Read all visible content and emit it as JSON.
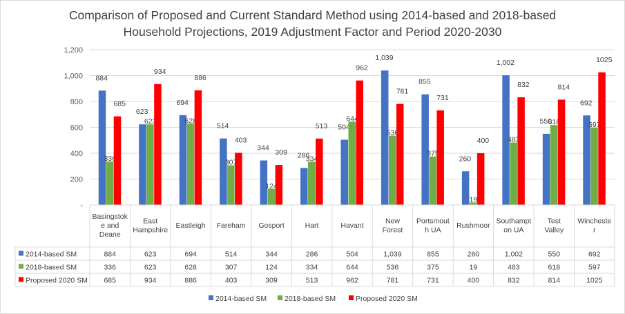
{
  "chart_data": {
    "type": "bar",
    "title_lines": [
      "Comparison of Proposed and Current Standard Method using 2014-based and 2018-based",
      "Household Projections, 2019 Adjustment Factor and Period 2020-2030"
    ],
    "categories": [
      [
        "Basingstok",
        "e and",
        "Deane"
      ],
      [
        "East",
        "Hampshire"
      ],
      [
        "Eastleigh"
      ],
      [
        "Fareham"
      ],
      [
        "Gosport"
      ],
      [
        "Hart"
      ],
      [
        "Havant"
      ],
      [
        "New",
        "Forest"
      ],
      [
        "Portsmout",
        "h UA"
      ],
      [
        "Rushmoor"
      ],
      [
        "Southampt",
        "on UA"
      ],
      [
        "Test",
        "Valley"
      ],
      [
        "Wincheste",
        "r"
      ]
    ],
    "series": [
      {
        "name": "2014-based SM",
        "color": "#4472c4",
        "values": [
          884,
          623,
          694,
          514,
          344,
          286,
          504,
          1039,
          855,
          260,
          1002,
          550,
          692
        ],
        "labels": [
          "884",
          "623",
          "694",
          "514",
          "344",
          "286",
          "504",
          "1,039",
          "855",
          "260",
          "1,002",
          "550",
          "692"
        ]
      },
      {
        "name": "2018-based SM",
        "color": "#70ad47",
        "values": [
          336,
          623,
          628,
          307,
          124,
          334,
          644,
          536,
          375,
          19,
          483,
          618,
          597
        ],
        "labels": [
          "336",
          "623",
          "628",
          "307",
          "124",
          "334",
          "644",
          "536",
          "375",
          "19",
          "483",
          "618",
          "597"
        ]
      },
      {
        "name": "Proposed 2020 SM",
        "color": "#ff0000",
        "values": [
          685,
          934,
          886,
          403,
          309,
          513,
          962,
          781,
          731,
          400,
          832,
          814,
          1025
        ],
        "labels": [
          "685",
          "934",
          "886",
          "403",
          "309",
          "513",
          "962",
          "781",
          "731",
          "400",
          "832",
          "814",
          "1025"
        ]
      }
    ],
    "y_ticks": [
      "-",
      "200",
      "400",
      "600",
      "800",
      "1,000",
      "1,200"
    ],
    "ylim": [
      0,
      1200
    ],
    "grid": true,
    "legend_position": "bottom",
    "data_table": true
  }
}
